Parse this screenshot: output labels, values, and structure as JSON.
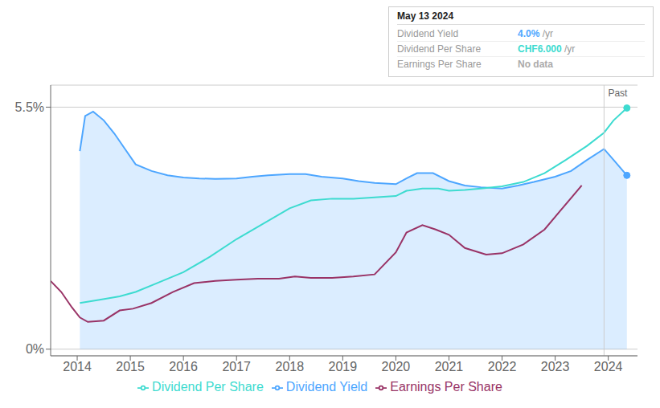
{
  "chart_data": {
    "type": "line",
    "xlim": [
      2013.5,
      2024.55
    ],
    "xticks": [
      2014,
      2015,
      2016,
      2017,
      2018,
      2019,
      2020,
      2021,
      2022,
      2023,
      2024
    ],
    "ylim": [
      -0.15,
      6.0
    ],
    "yticks": [
      {
        "value": 0,
        "label": "0%"
      },
      {
        "value": 5.5,
        "label": "5.5%"
      }
    ],
    "grid": true,
    "legend": "bottom",
    "series": [
      {
        "name": "Dividend Yield",
        "type": "area",
        "color": "#4da6ff",
        "x": [
          2014.05,
          2014.15,
          2014.3,
          2014.5,
          2014.7,
          2014.9,
          2015.1,
          2015.4,
          2015.7,
          2016.0,
          2016.3,
          2016.6,
          2017.0,
          2017.3,
          2017.6,
          2018.0,
          2018.3,
          2018.6,
          2019.0,
          2019.3,
          2019.6,
          2020.0,
          2020.2,
          2020.4,
          2020.7,
          2021.0,
          2021.3,
          2021.6,
          2022.0,
          2022.3,
          2022.6,
          2023.0,
          2023.3,
          2023.6,
          2023.92,
          2024.1,
          2024.35
        ],
        "values": [
          4.5,
          5.3,
          5.4,
          5.2,
          4.9,
          4.55,
          4.2,
          4.05,
          3.95,
          3.9,
          3.88,
          3.87,
          3.88,
          3.92,
          3.95,
          3.98,
          3.98,
          3.92,
          3.88,
          3.82,
          3.78,
          3.75,
          3.88,
          4.0,
          4.0,
          3.82,
          3.72,
          3.68,
          3.65,
          3.72,
          3.8,
          3.92,
          4.05,
          4.3,
          4.55,
          4.3,
          3.95
        ]
      },
      {
        "name": "Dividend Per Share",
        "type": "line",
        "color": "#3ddbd0",
        "x": [
          2014.05,
          2014.4,
          2014.8,
          2015.1,
          2015.5,
          2016.0,
          2016.5,
          2017.0,
          2017.5,
          2018.0,
          2018.4,
          2018.8,
          2019.2,
          2019.6,
          2020.0,
          2020.2,
          2020.5,
          2020.8,
          2021.0,
          2021.3,
          2021.6,
          2022.0,
          2022.4,
          2022.8,
          2023.2,
          2023.6,
          2023.92,
          2024.1,
          2024.35
        ],
        "values": [
          1.05,
          1.12,
          1.2,
          1.3,
          1.5,
          1.75,
          2.1,
          2.5,
          2.85,
          3.2,
          3.38,
          3.42,
          3.42,
          3.45,
          3.48,
          3.6,
          3.65,
          3.65,
          3.6,
          3.62,
          3.65,
          3.7,
          3.8,
          4.0,
          4.3,
          4.62,
          4.92,
          5.2,
          5.48
        ]
      },
      {
        "name": "Earnings Per Share",
        "type": "line",
        "color": "#993366",
        "x": [
          2013.5,
          2013.7,
          2013.9,
          2014.05,
          2014.2,
          2014.5,
          2014.8,
          2015.05,
          2015.4,
          2015.8,
          2016.2,
          2016.6,
          2017.0,
          2017.4,
          2017.8,
          2018.1,
          2018.4,
          2018.8,
          2019.2,
          2019.6,
          2020.0,
          2020.2,
          2020.5,
          2020.75,
          2021.0,
          2021.3,
          2021.7,
          2022.0,
          2022.4,
          2022.8,
          2023.1,
          2023.5
        ],
        "values": [
          1.55,
          1.3,
          0.95,
          0.72,
          0.62,
          0.65,
          0.88,
          0.92,
          1.05,
          1.3,
          1.5,
          1.55,
          1.58,
          1.6,
          1.6,
          1.65,
          1.62,
          1.62,
          1.65,
          1.7,
          2.2,
          2.65,
          2.82,
          2.72,
          2.6,
          2.3,
          2.15,
          2.18,
          2.38,
          2.72,
          3.15,
          3.72
        ]
      }
    ],
    "divider": {
      "x": 2023.92,
      "label": "Past"
    },
    "tooltip": {
      "date": "May 13 2024",
      "rows": [
        {
          "label": "Dividend Yield",
          "value": "4.0%",
          "suffix": " /yr",
          "color": "#4da6ff"
        },
        {
          "label": "Dividend Per Share",
          "value": "CHF6.000",
          "suffix": " /yr",
          "color": "#3ddbd0"
        },
        {
          "label": "Earnings Per Share",
          "value": "No data",
          "color": "#aaaaaa"
        }
      ]
    }
  }
}
